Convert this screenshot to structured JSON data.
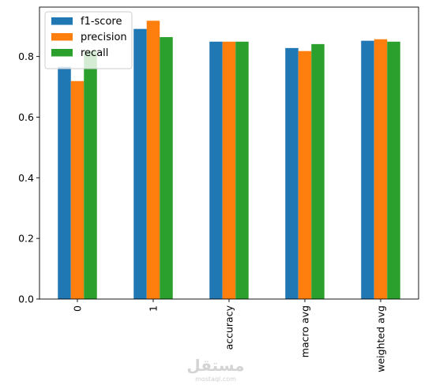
{
  "chart_data": {
    "type": "bar",
    "categories": [
      "0",
      "1",
      "accuracy",
      "macro avg",
      "weighted avg"
    ],
    "series": [
      {
        "name": "f1-score",
        "color": "#1f77b4",
        "values": [
          0.766,
          0.891,
          0.849,
          0.828,
          0.852
        ]
      },
      {
        "name": "precision",
        "color": "#ff7f0e",
        "values": [
          0.719,
          0.918,
          0.849,
          0.818,
          0.857
        ]
      },
      {
        "name": "recall",
        "color": "#2ca02c",
        "values": [
          0.818,
          0.864,
          0.849,
          0.841,
          0.849
        ]
      }
    ],
    "yticks": [
      "0.0",
      "0.2",
      "0.4",
      "0.6",
      "0.8"
    ],
    "ylim": [
      0,
      0.963
    ],
    "legend_position": "top-left",
    "grid": false
  },
  "watermark": {
    "text": "مستقل",
    "subtext": "mostaql.com"
  }
}
